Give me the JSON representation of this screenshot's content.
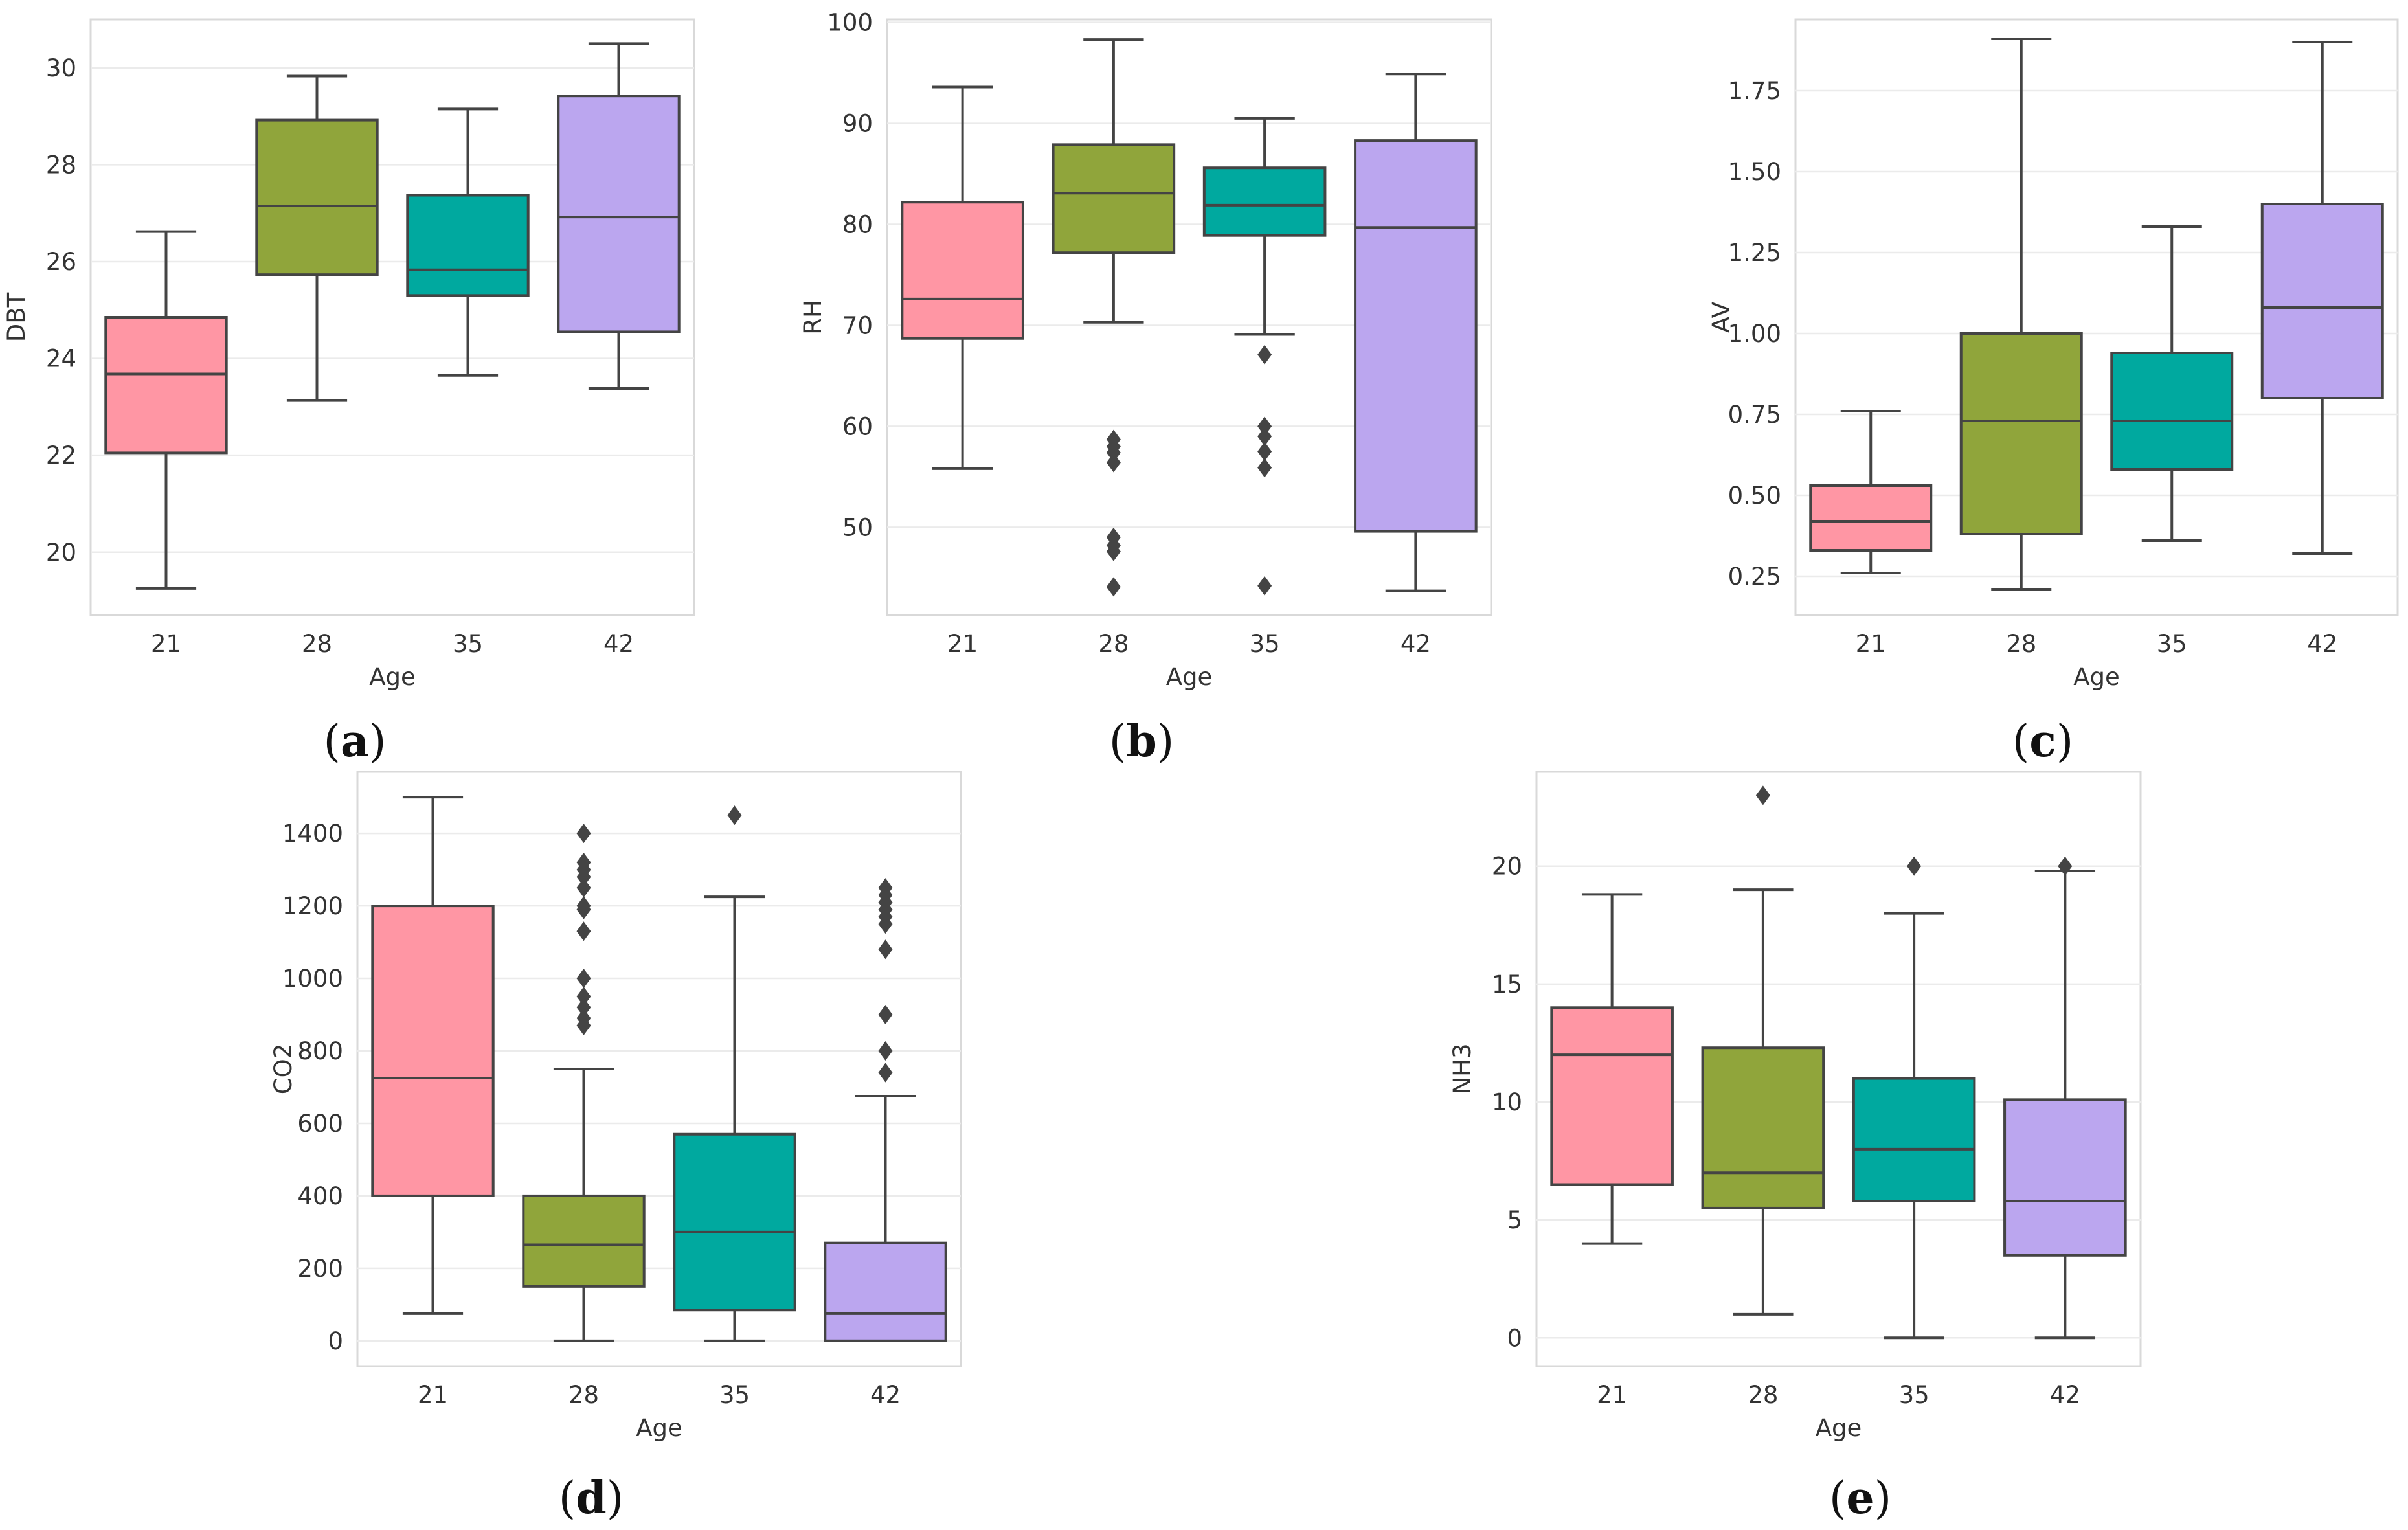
{
  "figure": {
    "colors": {
      "21": "#ff96a4",
      "28": "#90a53b",
      "35": "#00a99f",
      "42": "#bba6ef"
    }
  },
  "chart_data": [
    {
      "id": "a",
      "type": "box",
      "panel_label": "a",
      "xlabel": "Age",
      "ylabel": "DBT",
      "categories": [
        "21",
        "28",
        "35",
        "42"
      ],
      "ylim": [
        18.7,
        31.0
      ],
      "yticks": [
        20,
        22,
        24,
        26,
        28,
        30
      ],
      "tick_labels": [
        "20",
        "22",
        "24",
        "26",
        "28",
        "30"
      ],
      "boxes": [
        {
          "category": "21",
          "whisker_low": 19.25,
          "q1": 22.05,
          "median": 23.68,
          "q3": 24.85,
          "whisker_high": 26.62,
          "outliers": []
        },
        {
          "category": "28",
          "whisker_low": 23.13,
          "q1": 25.73,
          "median": 27.15,
          "q3": 28.92,
          "whisker_high": 29.83,
          "outliers": []
        },
        {
          "category": "35",
          "whisker_low": 23.65,
          "q1": 25.3,
          "median": 25.83,
          "q3": 27.37,
          "whisker_high": 29.15,
          "outliers": []
        },
        {
          "category": "42",
          "whisker_low": 23.38,
          "q1": 24.55,
          "median": 26.92,
          "q3": 29.42,
          "whisker_high": 30.5,
          "outliers": []
        }
      ]
    },
    {
      "id": "b",
      "type": "box",
      "panel_label": "b",
      "xlabel": "Age",
      "ylabel": "RH",
      "categories": [
        "21",
        "28",
        "35",
        "42"
      ],
      "ylim": [
        41.3,
        100.3
      ],
      "yticks": [
        50,
        60,
        70,
        80,
        90,
        100
      ],
      "tick_labels": [
        "50",
        "60",
        "70",
        "80",
        "90",
        "100"
      ],
      "boxes": [
        {
          "category": "21",
          "whisker_low": 55.8,
          "q1": 68.7,
          "median": 72.6,
          "q3": 82.2,
          "whisker_high": 93.6,
          "outliers": []
        },
        {
          "category": "28",
          "whisker_low": 70.3,
          "q1": 77.2,
          "median": 83.1,
          "q3": 87.9,
          "whisker_high": 98.3,
          "outliers": [
            58.7,
            58.0,
            57.4,
            56.4,
            49.0,
            48.2,
            47.6,
            44.1
          ]
        },
        {
          "category": "35",
          "whisker_low": 69.1,
          "q1": 78.9,
          "median": 81.9,
          "q3": 85.6,
          "whisker_high": 90.5,
          "outliers": [
            67.1,
            60.0,
            59.0,
            57.5,
            55.9,
            44.2
          ]
        },
        {
          "category": "42",
          "whisker_low": 43.7,
          "q1": 49.6,
          "median": 79.7,
          "q3": 88.3,
          "whisker_high": 94.9,
          "outliers": []
        }
      ]
    },
    {
      "id": "c",
      "type": "box",
      "panel_label": "c",
      "xlabel": "Age",
      "ylabel": "AV",
      "categories": [
        "21",
        "28",
        "35",
        "42"
      ],
      "ylim": [
        0.13,
        1.97
      ],
      "yticks": [
        0.25,
        0.5,
        0.75,
        1.0,
        1.25,
        1.5,
        1.75
      ],
      "tick_labels": [
        "0.25",
        "0.50",
        "0.75",
        "1.00",
        "1.25",
        "1.50",
        "1.75"
      ],
      "boxes": [
        {
          "category": "21",
          "whisker_low": 0.26,
          "q1": 0.33,
          "median": 0.42,
          "q3": 0.53,
          "whisker_high": 0.76,
          "outliers": []
        },
        {
          "category": "28",
          "whisker_low": 0.21,
          "q1": 0.38,
          "median": 0.73,
          "q3": 1.0,
          "whisker_high": 1.91,
          "outliers": []
        },
        {
          "category": "35",
          "whisker_low": 0.36,
          "q1": 0.58,
          "median": 0.73,
          "q3": 0.94,
          "whisker_high": 1.33,
          "outliers": []
        },
        {
          "category": "42",
          "whisker_low": 0.32,
          "q1": 0.8,
          "median": 1.08,
          "q3": 1.4,
          "whisker_high": 1.9,
          "outliers": []
        }
      ]
    },
    {
      "id": "d",
      "type": "box",
      "panel_label": "d",
      "xlabel": "Age",
      "ylabel": "CO2",
      "categories": [
        "21",
        "28",
        "35",
        "42"
      ],
      "ylim": [
        -70,
        1570
      ],
      "yticks": [
        0,
        200,
        400,
        600,
        800,
        1000,
        1200,
        1400
      ],
      "tick_labels": [
        "0",
        "200",
        "400",
        "600",
        "800",
        "1000",
        "1200",
        "1400"
      ],
      "boxes": [
        {
          "category": "21",
          "whisker_low": 75,
          "q1": 400,
          "median": 725,
          "q3": 1200,
          "whisker_high": 1500,
          "outliers": []
        },
        {
          "category": "28",
          "whisker_low": 0,
          "q1": 150,
          "median": 265,
          "q3": 400,
          "whisker_high": 750,
          "outliers": [
            1400,
            1320,
            1300,
            1280,
            1250,
            1200,
            1190,
            1130,
            1000,
            950,
            920,
            890,
            870
          ]
        },
        {
          "category": "35",
          "whisker_low": 0,
          "q1": 85,
          "median": 300,
          "q3": 570,
          "whisker_high": 1225,
          "outliers": [
            1450
          ]
        },
        {
          "category": "42",
          "whisker_low": 0,
          "q1": 0,
          "median": 75,
          "q3": 270,
          "whisker_high": 675,
          "outliers": [
            1250,
            1230,
            1210,
            1190,
            1170,
            1150,
            1080,
            900,
            800,
            740
          ]
        }
      ]
    },
    {
      "id": "e",
      "type": "box",
      "panel_label": "e",
      "xlabel": "Age",
      "ylabel": "NH3",
      "categories": [
        "21",
        "28",
        "35",
        "42"
      ],
      "ylim": [
        -1.2,
        24.0
      ],
      "yticks": [
        0,
        5,
        10,
        15,
        20
      ],
      "tick_labels": [
        "0",
        "5",
        "10",
        "15",
        "20"
      ],
      "boxes": [
        {
          "category": "21",
          "whisker_low": 4.0,
          "q1": 6.5,
          "median": 12.0,
          "q3": 14.0,
          "whisker_high": 18.8,
          "outliers": []
        },
        {
          "category": "28",
          "whisker_low": 1.0,
          "q1": 5.5,
          "median": 7.0,
          "q3": 12.3,
          "whisker_high": 19.0,
          "outliers": [
            23.0
          ]
        },
        {
          "category": "35",
          "whisker_low": 0.0,
          "q1": 5.8,
          "median": 8.0,
          "q3": 11.0,
          "whisker_high": 18.0,
          "outliers": [
            20.0
          ]
        },
        {
          "category": "42",
          "whisker_low": 0.0,
          "q1": 3.5,
          "median": 5.8,
          "q3": 10.1,
          "whisker_high": 19.8,
          "outliers": [
            20.0
          ]
        }
      ]
    }
  ]
}
